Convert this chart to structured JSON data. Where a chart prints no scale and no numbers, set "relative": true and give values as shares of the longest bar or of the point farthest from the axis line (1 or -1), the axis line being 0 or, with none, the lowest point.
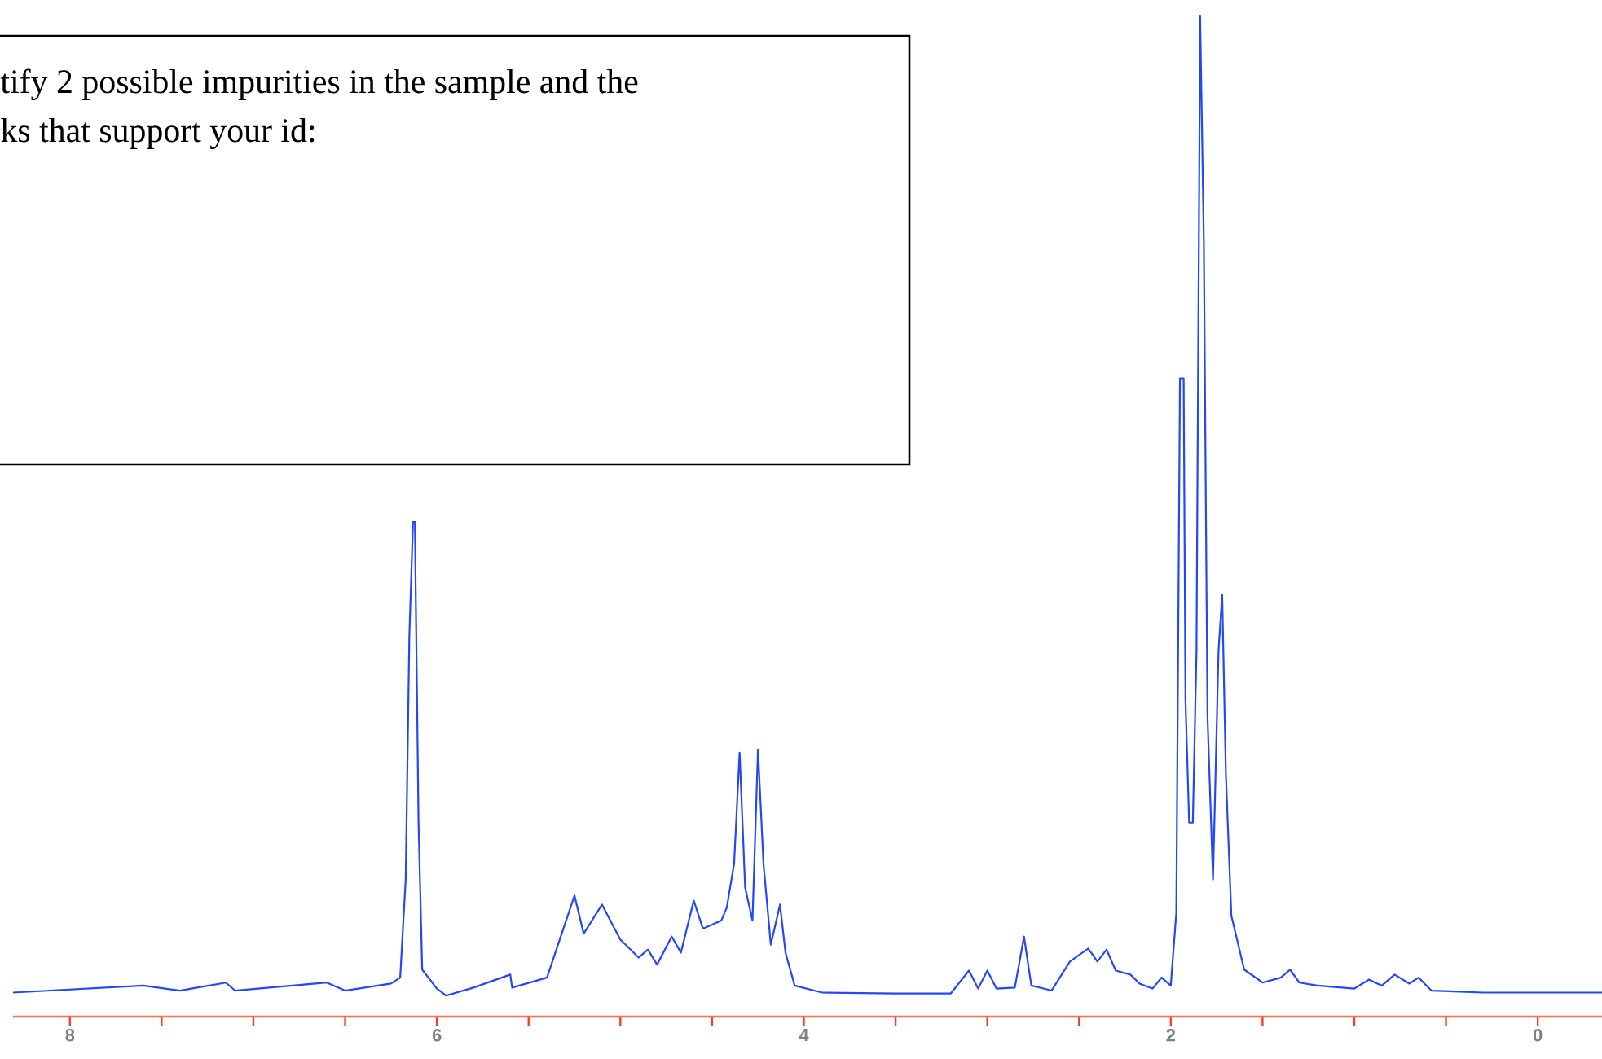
{
  "chart_data": {
    "type": "line",
    "relative": true,
    "annotations": [
      "tify 2 possible impurities in the sample and the",
      "ks that support your id:"
    ],
    "x": [
      8.31,
      7.6,
      7.4,
      7.15,
      7.1,
      6.6,
      6.5,
      6.25,
      6.2,
      6.17,
      6.15,
      6.13,
      6.12,
      6.1,
      6.08,
      6.0,
      5.95,
      5.8,
      5.6,
      5.59,
      5.4,
      5.25,
      5.2,
      5.1,
      5.0,
      4.9,
      4.85,
      4.8,
      4.72,
      4.67,
      4.6,
      4.55,
      4.45,
      4.42,
      4.38,
      4.35,
      4.32,
      4.28,
      4.25,
      4.22,
      4.18,
      4.13,
      4.1,
      4.05,
      3.9,
      3.5,
      3.2,
      3.1,
      3.05,
      3.0,
      2.95,
      2.85,
      2.8,
      2.76,
      2.65,
      2.55,
      2.45,
      2.4,
      2.35,
      2.3,
      2.22,
      2.17,
      2.1,
      2.05,
      2.0,
      1.97,
      1.95,
      1.93,
      1.92,
      1.9,
      1.88,
      1.86,
      1.84,
      1.82,
      1.8,
      1.77,
      1.74,
      1.72,
      1.7,
      1.67,
      1.6,
      1.5,
      1.4,
      1.35,
      1.3,
      1.2,
      1.0,
      0.92,
      0.85,
      0.78,
      0.7,
      0.65,
      0.58,
      0.3,
      -0.35
    ],
    "series": [
      {
        "color": "#2448f5",
        "values": [
          0.024,
          0.031,
          0.026,
          0.034,
          0.026,
          0.034,
          0.026,
          0.033,
          0.039,
          0.137,
          0.381,
          0.495,
          0.495,
          0.194,
          0.047,
          0.028,
          0.021,
          0.029,
          0.042,
          0.029,
          0.039,
          0.121,
          0.083,
          0.112,
          0.077,
          0.059,
          0.067,
          0.052,
          0.08,
          0.064,
          0.116,
          0.088,
          0.096,
          0.109,
          0.153,
          0.264,
          0.129,
          0.096,
          0.267,
          0.153,
          0.072,
          0.112,
          0.064,
          0.031,
          0.024,
          0.023,
          0.023,
          0.046,
          0.028,
          0.046,
          0.028,
          0.029,
          0.08,
          0.031,
          0.026,
          0.055,
          0.068,
          0.055,
          0.067,
          0.046,
          0.042,
          0.033,
          0.028,
          0.039,
          0.031,
          0.104,
          0.638,
          0.638,
          0.316,
          0.194,
          0.194,
          0.365,
          1.0,
          0.775,
          0.3,
          0.137,
          0.365,
          0.422,
          0.243,
          0.101,
          0.047,
          0.034,
          0.039,
          0.047,
          0.034,
          0.031,
          0.028,
          0.037,
          0.031,
          0.042,
          0.033,
          0.039,
          0.026,
          0.024,
          0.024
        ]
      }
    ],
    "xlim": [
      8.31,
      -0.35
    ],
    "xticks": [
      8,
      {
        "value": 7.5,
        "label": null
      },
      {
        "value": 7,
        "label": null
      },
      {
        "value": 6.5,
        "label": null
      },
      6,
      {
        "value": 5.5,
        "label": null
      },
      {
        "value": 5,
        "label": null
      },
      {
        "value": 4.5,
        "label": null
      },
      4,
      {
        "value": 3.5,
        "label": null
      },
      {
        "value": 3,
        "label": null
      },
      {
        "value": 2.5,
        "label": null
      },
      2,
      {
        "value": 1.5,
        "label": null
      },
      {
        "value": 1,
        "label": null
      },
      {
        "value": 0.5,
        "label": null
      },
      0
    ]
  }
}
